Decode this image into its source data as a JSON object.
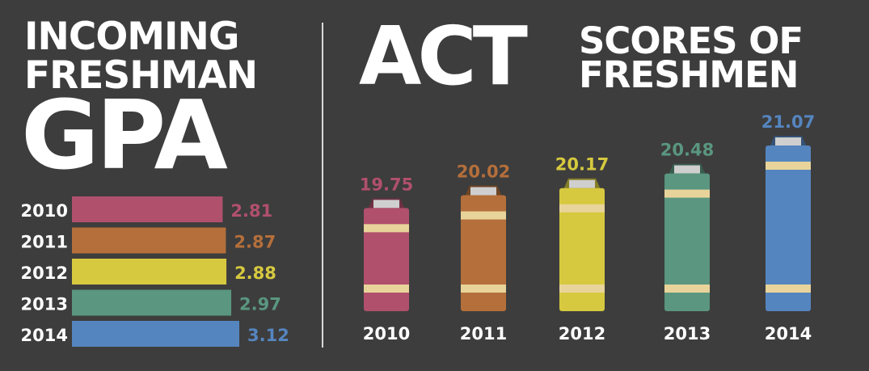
{
  "gpa_title": {
    "line1": "INCOMING",
    "line2": "FRESHMAN",
    "big": "GPA"
  },
  "act_title": {
    "big": "ACT",
    "line1": "SCORES OF",
    "line2": "FRESHMEN"
  },
  "colors": {
    "background": "#3d3d3d",
    "stripe": "#e8d49a",
    "2010": "#b0506d",
    "2011": "#b56f3b",
    "2012": "#d6c93f",
    "2013": "#5a9680",
    "2014": "#5585bf"
  },
  "chart_data": [
    {
      "type": "bar",
      "orientation": "horizontal",
      "title": "INCOMING FRESHMAN GPA",
      "categories": [
        "2010",
        "2011",
        "2012",
        "2013",
        "2014"
      ],
      "values": [
        2.81,
        2.87,
        2.88,
        2.97,
        3.12
      ],
      "value_labels": [
        "2.81",
        "2.87",
        "2.88",
        "2.97",
        "3.12"
      ],
      "grid": false,
      "legend": "none"
    },
    {
      "type": "bar",
      "title": "ACT SCORES OF FRESHMEN",
      "categories": [
        "2010",
        "2011",
        "2012",
        "2013",
        "2014"
      ],
      "values": [
        19.75,
        20.02,
        20.17,
        20.48,
        21.07
      ],
      "value_labels": [
        "19.75",
        "20.02",
        "20.17",
        "20.48",
        "21.07"
      ],
      "grid": false,
      "legend": "none"
    }
  ]
}
